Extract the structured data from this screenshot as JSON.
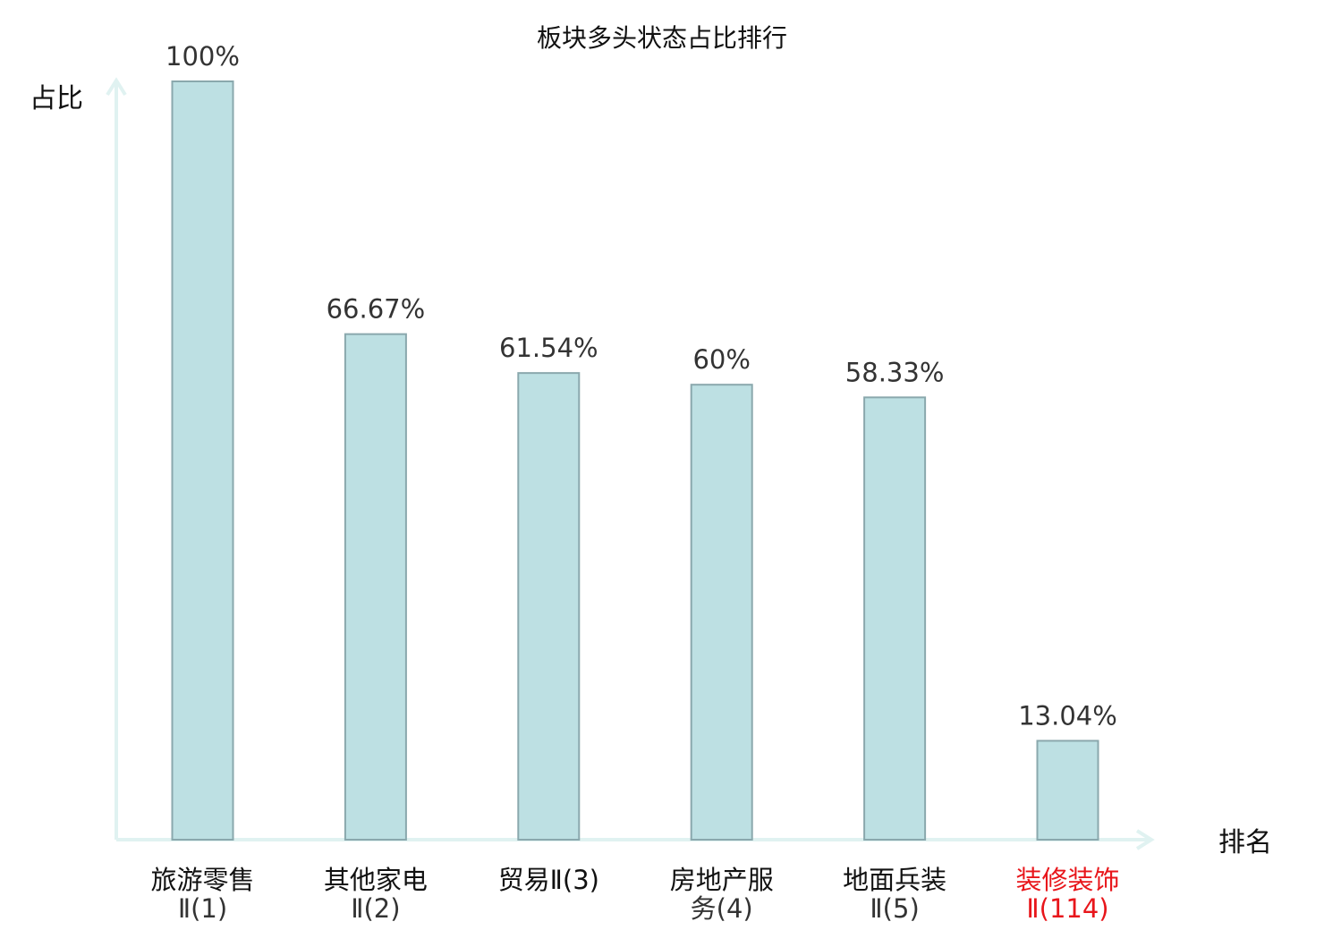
{
  "chart_data": {
    "type": "bar",
    "title": "板块多头状态占比排行",
    "ylabel": "占比",
    "xlabel": "排名",
    "ylim": [
      0,
      100
    ],
    "categories": [
      [
        "旅游零售",
        "Ⅱ(1)"
      ],
      [
        "其他家电",
        "Ⅱ(2)"
      ],
      [
        "贸易Ⅱ(3)"
      ],
      [
        "房地产服",
        "务(4)"
      ],
      [
        "地面兵装",
        "Ⅱ(5)"
      ],
      [
        "装修装饰",
        "Ⅱ(114)"
      ]
    ],
    "values": [
      100,
      66.67,
      61.54,
      60,
      58.33,
      13.04
    ],
    "value_labels": [
      "100%",
      "66.67%",
      "61.54%",
      "60%",
      "58.33%",
      "13.04%"
    ],
    "highlight_index": 5,
    "grid": false,
    "colors": {
      "bar_fill": "#bde0e3",
      "bar_stroke": "#8aa8ad",
      "axis": "#e0f2f1",
      "highlight_text": "#e8161b",
      "text": "#111111",
      "label_text": "#333333"
    }
  }
}
